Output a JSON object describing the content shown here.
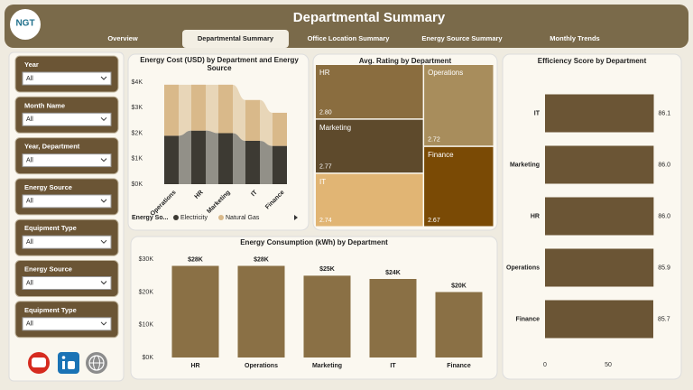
{
  "logo": "NGT",
  "header": {
    "title": "Departmental Summary",
    "tabs": [
      "Overview",
      "Departmental Summary",
      "Office Location Summary",
      "Energy Source Summary",
      "Monthly Trends"
    ],
    "active_tab": 1
  },
  "filters": [
    {
      "label": "Year",
      "value": "All"
    },
    {
      "label": "Month Name",
      "value": "All"
    },
    {
      "label": "Year, Department",
      "value": "All"
    },
    {
      "label": "Energy Source",
      "value": "All"
    },
    {
      "label": "Equipment Type",
      "value": "All"
    },
    {
      "label": "Energy Source",
      "value": "All"
    },
    {
      "label": "Equipment Type",
      "value": "All"
    }
  ],
  "chart_data": [
    {
      "type": "ribbon",
      "title": "Energy Cost (USD) by Department and Energy Source",
      "categories": [
        "Operations",
        "HR",
        "Marketing",
        "IT",
        "Finance"
      ],
      "legend_title": "Energy So...",
      "series": [
        {
          "name": "Electricity",
          "color": "#3d3a33",
          "values": [
            1900,
            2100,
            2000,
            1700,
            1500
          ]
        },
        {
          "name": "Natural Gas",
          "color": "#d9b98a",
          "values": [
            2000,
            1800,
            1900,
            1600,
            1300
          ]
        }
      ],
      "ylim": [
        0,
        4000
      ],
      "yticks": [
        {
          "value": 0,
          "label": "$0K"
        },
        {
          "value": 1000,
          "label": "$1K"
        },
        {
          "value": 2000,
          "label": "$2K"
        },
        {
          "value": 3000,
          "label": "$3K"
        },
        {
          "value": 4000,
          "label": "$4K"
        }
      ],
      "grid": false
    },
    {
      "type": "treemap",
      "title": "Avg. Rating by Department",
      "categories": [
        "HR",
        "Marketing",
        "IT",
        "Operations",
        "Finance"
      ],
      "values": [
        2.8,
        2.77,
        2.74,
        2.72,
        2.67
      ],
      "value_labels": [
        "2.80",
        "2.77",
        "2.74",
        "2.72",
        "2.67"
      ],
      "colors": [
        "#8a6d3f",
        "#5e4a2c",
        "#e1b574",
        "#a88d5c",
        "#7a4a05"
      ]
    },
    {
      "type": "bar",
      "title": "Energy Consumption (kWh) by Department",
      "categories": [
        "HR",
        "Operations",
        "Marketing",
        "IT",
        "Finance"
      ],
      "values": [
        28000,
        28000,
        25000,
        24000,
        20000
      ],
      "value_labels": [
        "$28K",
        "$28K",
        "$25K",
        "$24K",
        "$20K"
      ],
      "color": "#8a7045",
      "ylim": [
        0,
        32000
      ],
      "yticks": [
        {
          "value": 0,
          "label": "$0K"
        },
        {
          "value": 10000,
          "label": "$10K"
        },
        {
          "value": 20000,
          "label": "$20K"
        },
        {
          "value": 30000,
          "label": "$30K"
        }
      ],
      "grid": false
    },
    {
      "type": "hbar",
      "title": "Efficiency Score by Department",
      "categories": [
        "IT",
        "Marketing",
        "HR",
        "Operations",
        "Finance"
      ],
      "values": [
        86.1,
        86.0,
        86.0,
        85.9,
        85.7
      ],
      "value_labels": [
        "86.1",
        "86.0",
        "86.0",
        "85.9",
        "85.7"
      ],
      "color": "#6b5535",
      "xlim": [
        0,
        100
      ],
      "xticks": [
        0,
        50
      ],
      "grid": false
    }
  ]
}
